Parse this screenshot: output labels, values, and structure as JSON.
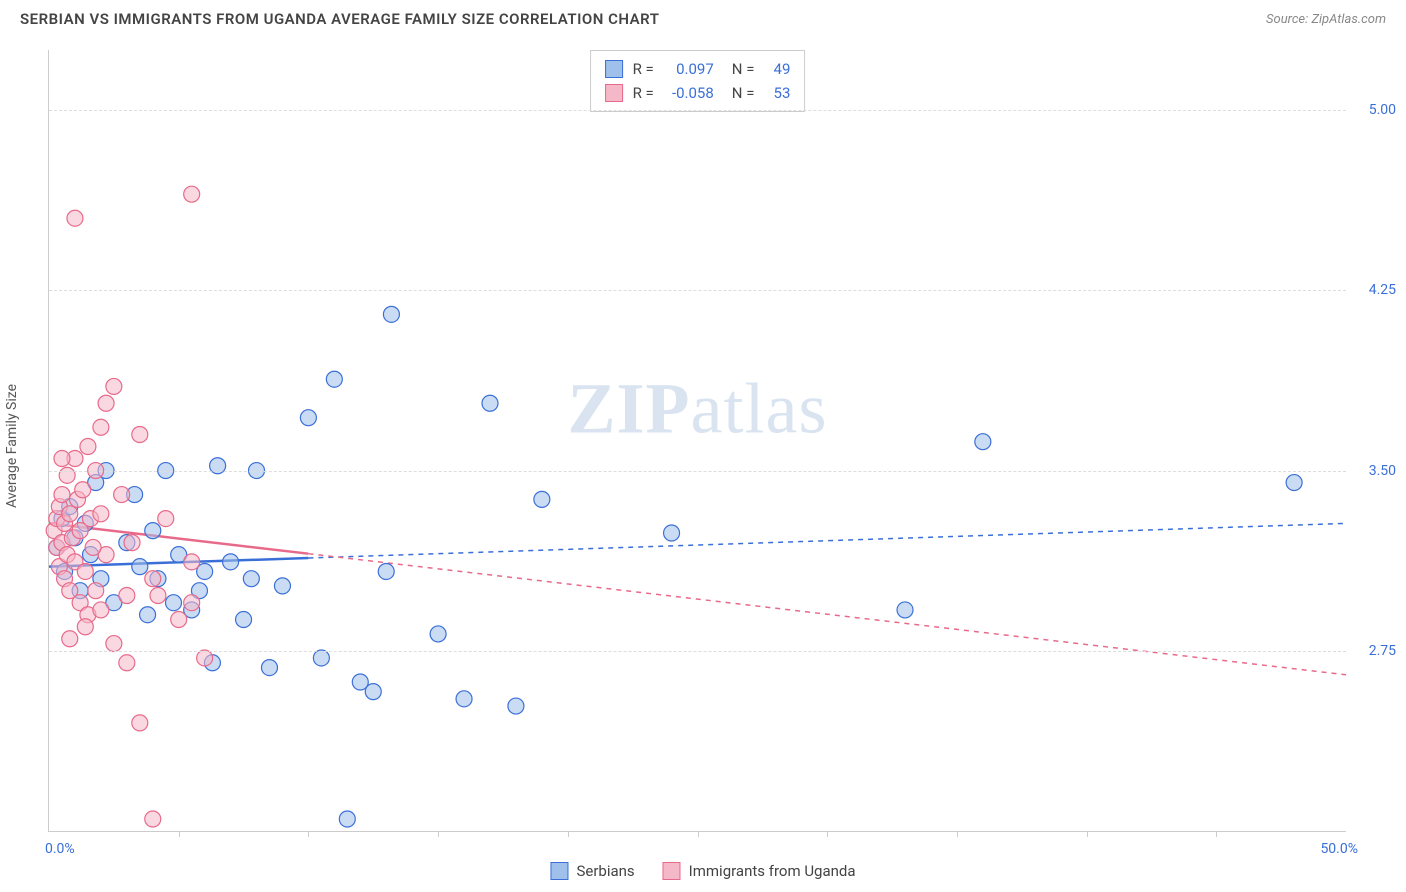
{
  "title": "SERBIAN VS IMMIGRANTS FROM UGANDA AVERAGE FAMILY SIZE CORRELATION CHART",
  "source_label": "Source:",
  "source_value": "ZipAtlas.com",
  "y_axis_label": "Average Family Size",
  "watermark_a": "ZIP",
  "watermark_b": "atlas",
  "chart": {
    "type": "scatter",
    "xlim": [
      0,
      50
    ],
    "ylim": [
      2.0,
      5.25
    ],
    "x_unit": "%",
    "x_min_label": "0.0%",
    "x_max_label": "50.0%",
    "y_ticks": [
      2.75,
      3.5,
      4.25,
      5.0
    ],
    "y_tick_labels": [
      "2.75",
      "3.50",
      "4.25",
      "5.00"
    ],
    "x_minor_ticks": [
      5,
      10,
      15,
      20,
      25,
      30,
      35,
      40,
      45
    ],
    "grid_color": "#dddddd",
    "axis_color": "#cccccc",
    "background_color": "#ffffff",
    "marker_radius": 8,
    "marker_opacity": 0.55,
    "marker_stroke_width": 1.2,
    "trend_line_width": 2.5,
    "trend_dash_solid_until_x": 10,
    "series": [
      {
        "key": "serbians",
        "label": "Serbians",
        "fill": "#9fc0ea",
        "stroke": "#3b6fd8",
        "R_label": "R =",
        "R": "0.097",
        "N_label": "N =",
        "N": "49",
        "trend": {
          "y_at_x0": 3.1,
          "y_at_xmax": 3.28
        },
        "points": [
          [
            0.3,
            3.18
          ],
          [
            0.5,
            3.3
          ],
          [
            0.6,
            3.08
          ],
          [
            0.8,
            3.35
          ],
          [
            1.0,
            3.22
          ],
          [
            1.2,
            3.0
          ],
          [
            1.4,
            3.28
          ],
          [
            1.6,
            3.15
          ],
          [
            1.8,
            3.45
          ],
          [
            2.0,
            3.05
          ],
          [
            2.2,
            3.5
          ],
          [
            2.5,
            2.95
          ],
          [
            3.0,
            3.2
          ],
          [
            3.3,
            3.4
          ],
          [
            3.5,
            3.1
          ],
          [
            3.8,
            2.9
          ],
          [
            4.0,
            3.25
          ],
          [
            4.2,
            3.05
          ],
          [
            4.5,
            3.5
          ],
          [
            5.0,
            3.15
          ],
          [
            5.5,
            2.92
          ],
          [
            5.8,
            3.0
          ],
          [
            6.0,
            3.08
          ],
          [
            6.3,
            2.7
          ],
          [
            6.5,
            3.52
          ],
          [
            7.0,
            3.12
          ],
          [
            7.5,
            2.88
          ],
          [
            7.8,
            3.05
          ],
          [
            8.0,
            3.5
          ],
          [
            8.5,
            2.68
          ],
          [
            9.0,
            3.02
          ],
          [
            10.0,
            3.72
          ],
          [
            10.5,
            2.72
          ],
          [
            11.0,
            3.88
          ],
          [
            12.0,
            2.62
          ],
          [
            12.5,
            2.58
          ],
          [
            13.0,
            3.08
          ],
          [
            13.2,
            4.15
          ],
          [
            15.0,
            2.82
          ],
          [
            16.0,
            2.55
          ],
          [
            17.0,
            3.78
          ],
          [
            18.0,
            2.52
          ],
          [
            19.0,
            3.38
          ],
          [
            24.0,
            3.24
          ],
          [
            33.0,
            2.92
          ],
          [
            36.0,
            3.62
          ],
          [
            48.0,
            3.45
          ],
          [
            11.5,
            2.05
          ],
          [
            4.8,
            2.95
          ]
        ]
      },
      {
        "key": "uganda",
        "label": "Immigrants from Uganda",
        "fill": "#f5b8c8",
        "stroke": "#e86a8a",
        "R_label": "R =",
        "R": "-0.058",
        "N_label": "N =",
        "N": "53",
        "trend": {
          "y_at_x0": 3.28,
          "y_at_xmax": 2.65
        },
        "points": [
          [
            0.2,
            3.25
          ],
          [
            0.3,
            3.3
          ],
          [
            0.3,
            3.18
          ],
          [
            0.4,
            3.35
          ],
          [
            0.4,
            3.1
          ],
          [
            0.5,
            3.4
          ],
          [
            0.5,
            3.2
          ],
          [
            0.6,
            3.28
          ],
          [
            0.6,
            3.05
          ],
          [
            0.7,
            3.48
          ],
          [
            0.7,
            3.15
          ],
          [
            0.8,
            3.32
          ],
          [
            0.8,
            3.0
          ],
          [
            0.9,
            3.22
          ],
          [
            1.0,
            3.55
          ],
          [
            1.0,
            3.12
          ],
          [
            1.1,
            3.38
          ],
          [
            1.2,
            2.95
          ],
          [
            1.2,
            3.25
          ],
          [
            1.3,
            3.42
          ],
          [
            1.4,
            3.08
          ],
          [
            1.5,
            3.6
          ],
          [
            1.5,
            2.9
          ],
          [
            1.6,
            3.3
          ],
          [
            1.8,
            3.5
          ],
          [
            1.8,
            3.0
          ],
          [
            2.0,
            3.68
          ],
          [
            2.0,
            2.92
          ],
          [
            2.2,
            3.78
          ],
          [
            2.2,
            3.15
          ],
          [
            2.5,
            3.85
          ],
          [
            2.5,
            2.78
          ],
          [
            2.8,
            3.4
          ],
          [
            3.0,
            2.7
          ],
          [
            3.2,
            3.2
          ],
          [
            3.5,
            3.65
          ],
          [
            3.5,
            2.45
          ],
          [
            4.0,
            3.05
          ],
          [
            4.2,
            2.98
          ],
          [
            4.5,
            3.3
          ],
          [
            5.0,
            2.88
          ],
          [
            5.5,
            3.12
          ],
          [
            5.5,
            2.95
          ],
          [
            6.0,
            2.72
          ],
          [
            1.0,
            4.55
          ],
          [
            5.5,
            4.65
          ],
          [
            0.8,
            2.8
          ],
          [
            1.4,
            2.85
          ],
          [
            2.0,
            3.32
          ],
          [
            0.5,
            3.55
          ],
          [
            1.7,
            3.18
          ],
          [
            4.0,
            2.05
          ],
          [
            3.0,
            2.98
          ]
        ]
      }
    ]
  }
}
